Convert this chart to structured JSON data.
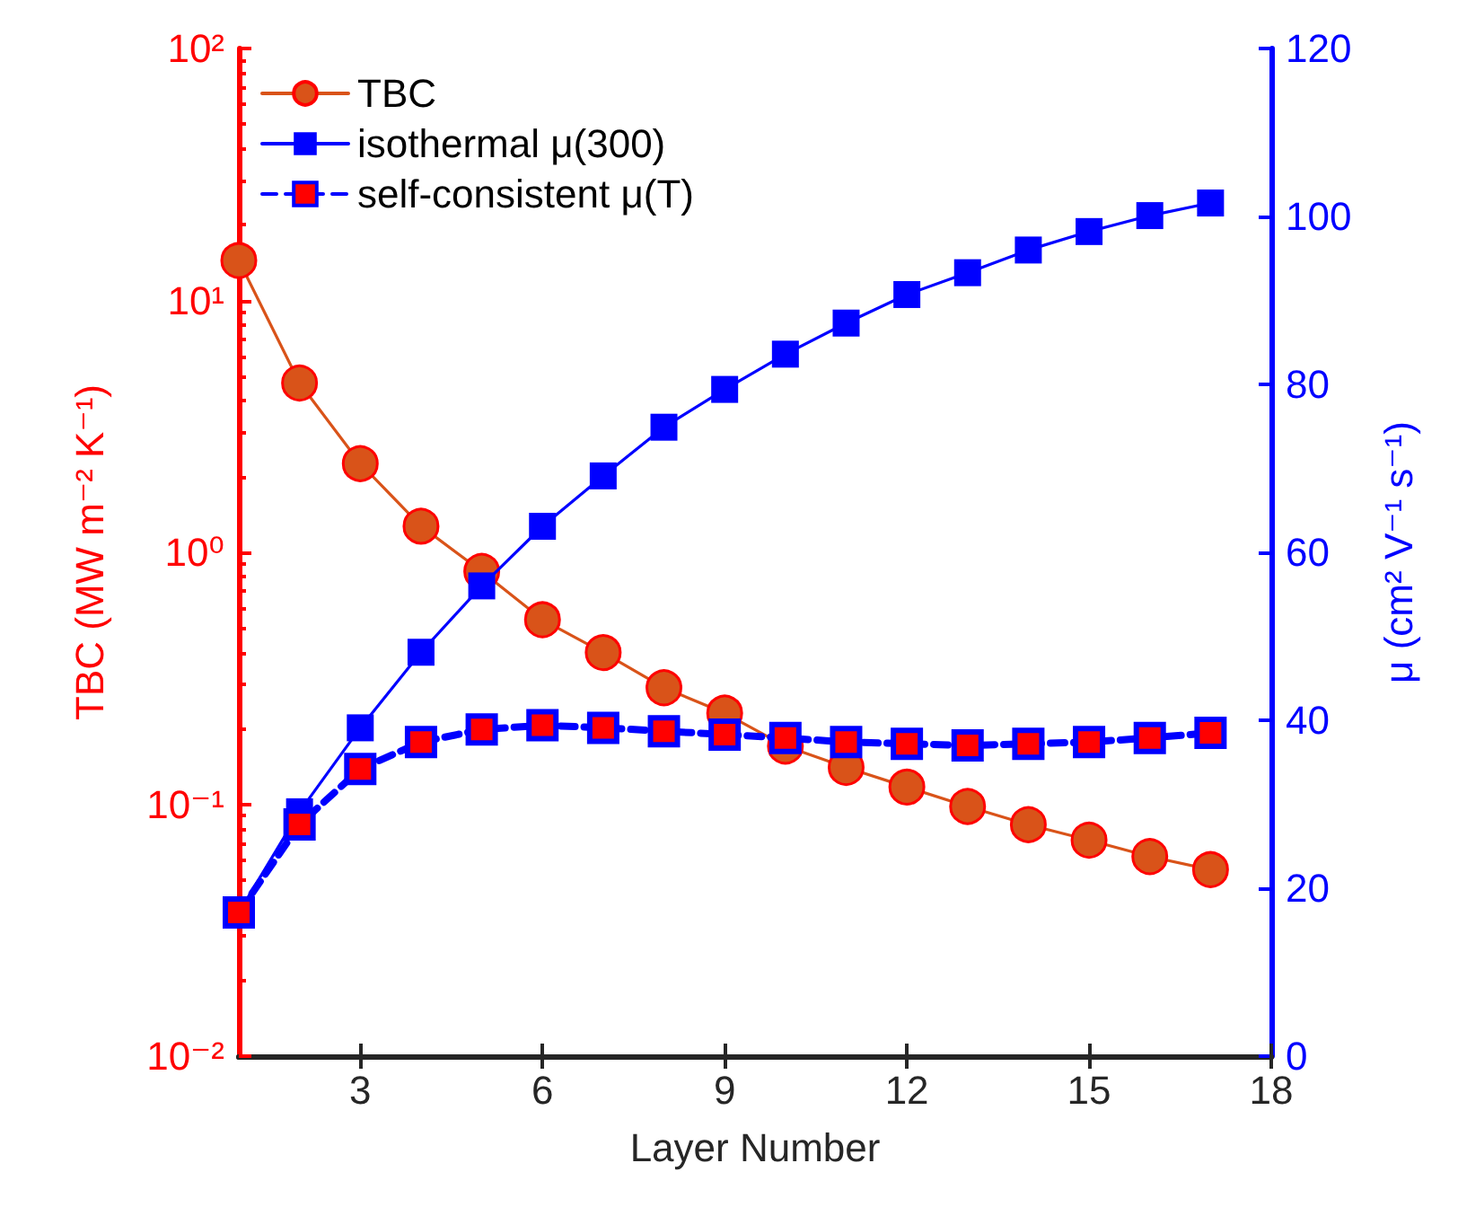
{
  "chart_data": {
    "type": "line",
    "xlabel": "Layer Number",
    "ylabel": "TBC (MW m⁻² K⁻¹)",
    "y2label": "μ (cm² V⁻¹ s⁻¹)",
    "x": [
      1,
      2,
      3,
      4,
      5,
      6,
      7,
      8,
      9,
      10,
      11,
      12,
      13,
      14,
      15,
      16,
      17
    ],
    "series": [
      {
        "name": "TBC",
        "color": "#d95319",
        "marker": "circle",
        "line_style": "solid",
        "values": [
          14.4,
          4.7,
          2.25,
          1.27,
          0.84,
          0.54,
          0.4,
          0.29,
          0.23,
          0.17,
          0.14,
          0.117,
          0.098,
          0.083,
          0.072,
          0.062,
          0.055
        ]
      },
      {
        "name": "isothermal μ(300)",
        "color": "#0000ff",
        "marker": "square",
        "line_style": "solid",
        "axis": "y2",
        "values": [
          17.1,
          29.1,
          39.1,
          48.1,
          56.0,
          63.1,
          69.1,
          74.9,
          79.4,
          83.6,
          87.3,
          90.7,
          93.3,
          96.0,
          98.2,
          100.1,
          101.6
        ]
      },
      {
        "name": "self-consistent μ(T)",
        "color": "#0000ff",
        "marker": "square",
        "line_style": "dashed",
        "axis": "y2",
        "values": [
          17.1,
          27.6,
          34.2,
          37.4,
          38.9,
          39.4,
          39.1,
          38.7,
          38.3,
          37.9,
          37.4,
          37.2,
          37.0,
          37.2,
          37.4,
          37.9,
          38.5
        ]
      }
    ],
    "xlim": [
      1,
      18
    ],
    "xticks": [
      3,
      6,
      9,
      12,
      15,
      18
    ],
    "log": "y",
    "ylim": [
      0.01,
      100
    ],
    "yticks": [
      {
        "value": 0.01,
        "label": "10⁻²"
      },
      {
        "value": 0.1,
        "label": "10⁻¹"
      },
      {
        "value": 1,
        "label": "10⁰"
      },
      {
        "value": 10,
        "label": "10¹"
      },
      {
        "value": 100,
        "label": "10²"
      }
    ],
    "y2lim": [
      0,
      120
    ],
    "y2ticks": [
      0,
      20,
      40,
      60,
      80,
      100,
      120
    ],
    "legend": "top left",
    "grid": false
  }
}
